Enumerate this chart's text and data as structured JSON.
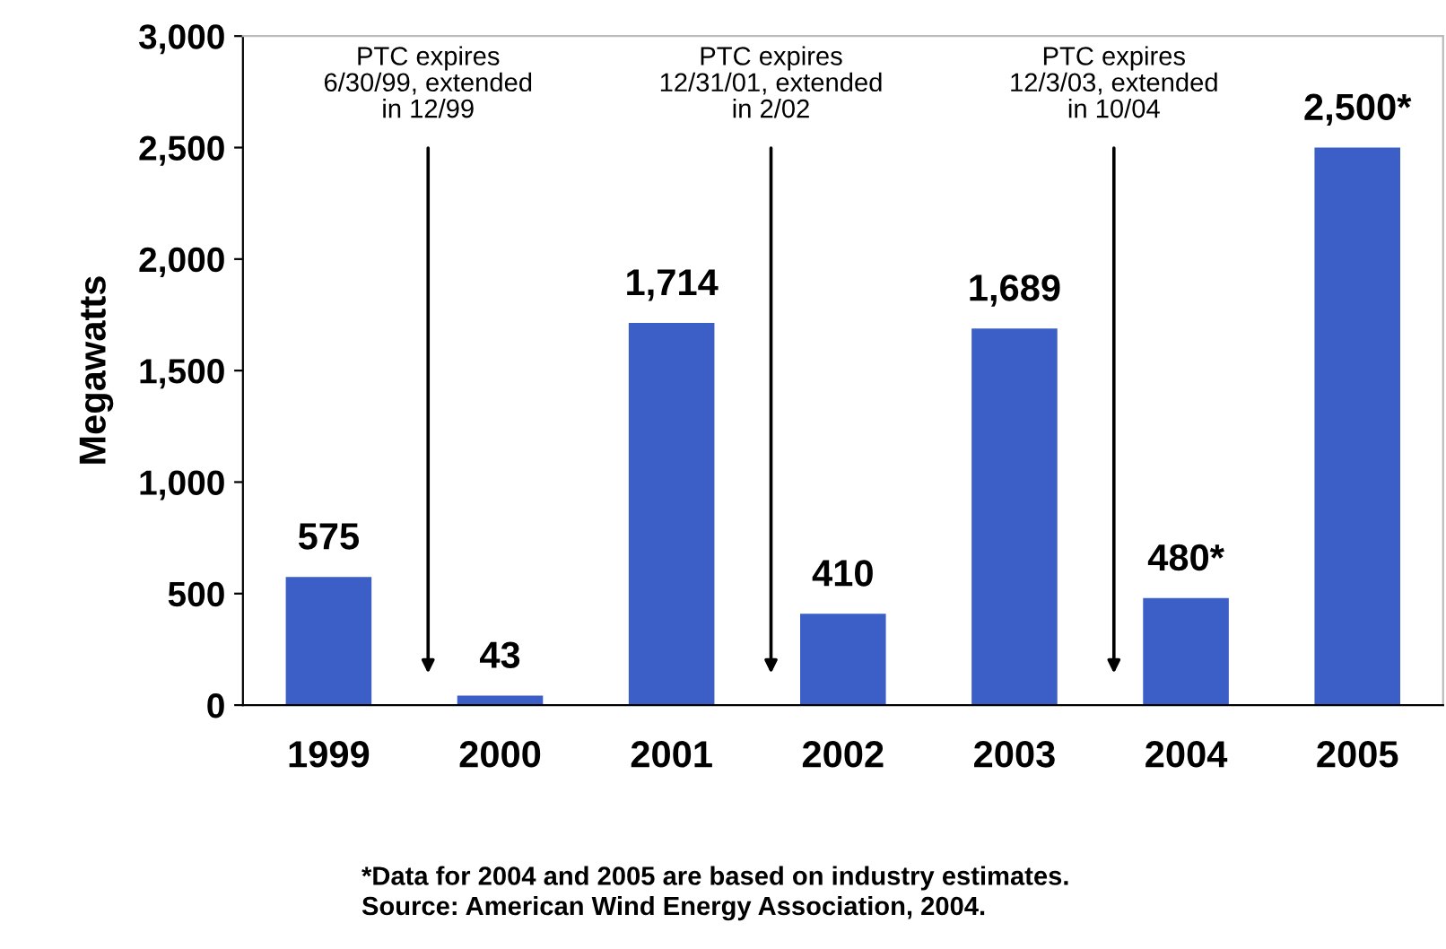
{
  "chart_data": {
    "type": "bar",
    "ylabel": "Megawatts",
    "categories": [
      "1999",
      "2000",
      "2001",
      "2002",
      "2003",
      "2004",
      "2005"
    ],
    "values": [
      575,
      43,
      1714,
      410,
      1689,
      480,
      2500
    ],
    "value_labels": [
      "575",
      "43",
      "1,714",
      "410",
      "1,689",
      "480*",
      "2,500*"
    ],
    "color": "#3b5fc6",
    "ylim": [
      0,
      3000
    ],
    "yticks": [
      {
        "value": 0,
        "label": "0"
      },
      {
        "value": 500,
        "label": "500"
      },
      {
        "value": 1000,
        "label": "1,000"
      },
      {
        "value": 1500,
        "label": "1,500"
      },
      {
        "value": 2000,
        "label": "2,000"
      },
      {
        "value": 2500,
        "label": "2,500"
      },
      {
        "value": 3000,
        "label": "3,000"
      }
    ],
    "grid": false,
    "annotations": [
      "PTC expires\n6/30/99, extended\nin 12/99",
      "PTC expires\n12/31/01, extended\nin 2/02",
      "PTC expires\n12/3/03, extended\nin 10/04",
      "*Data for 2004 and 2005 are based on industry estimates.\nSource: American Wind Energy Association, 2004."
    ]
  }
}
